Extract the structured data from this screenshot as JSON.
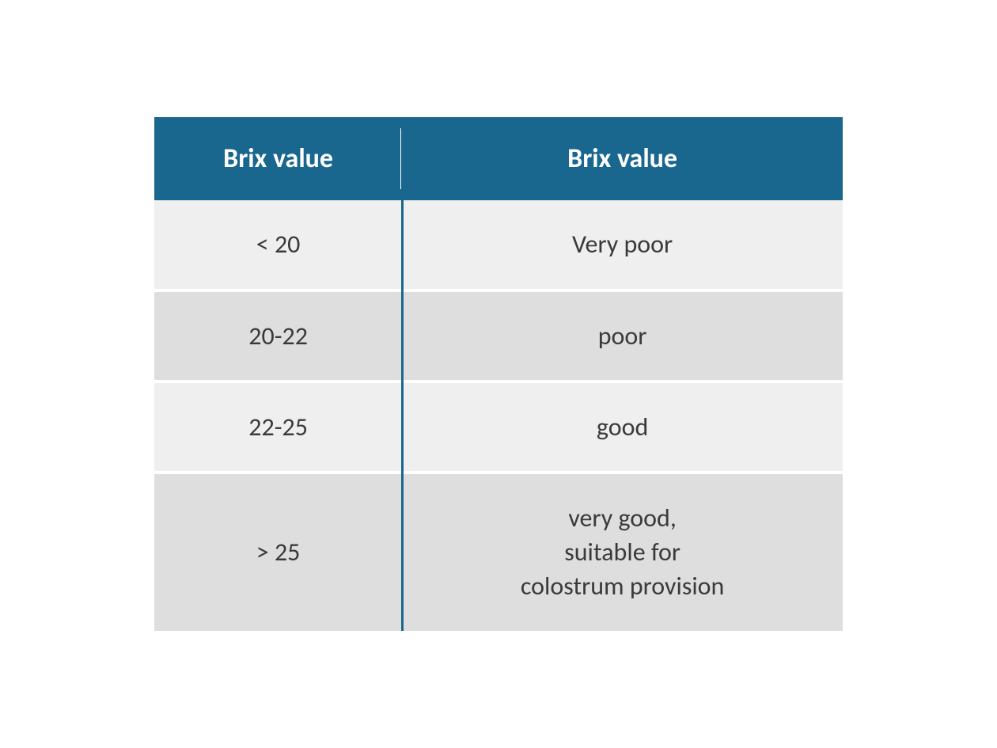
{
  "table": {
    "type": "table",
    "header_bg": "#19678e",
    "header_text_color": "#ffffff",
    "row_bg_light": "#efefef",
    "row_bg_dark": "#dedede",
    "body_text_color": "#3a3a3a",
    "separator_color": "#19678e",
    "header_fontsize": 34,
    "body_fontsize": 32,
    "col_widths_pct": [
      36,
      64
    ],
    "columns": [
      "Brix value",
      "Brix value"
    ],
    "rows": [
      {
        "c0": "< 20",
        "c1": "Very poor"
      },
      {
        "c0": "20-22",
        "c1": "poor"
      },
      {
        "c0": "22-25",
        "c1": "good"
      },
      {
        "c0": "> 25",
        "c1": "very good,\nsuitable for\ncolostrum provision"
      }
    ]
  }
}
